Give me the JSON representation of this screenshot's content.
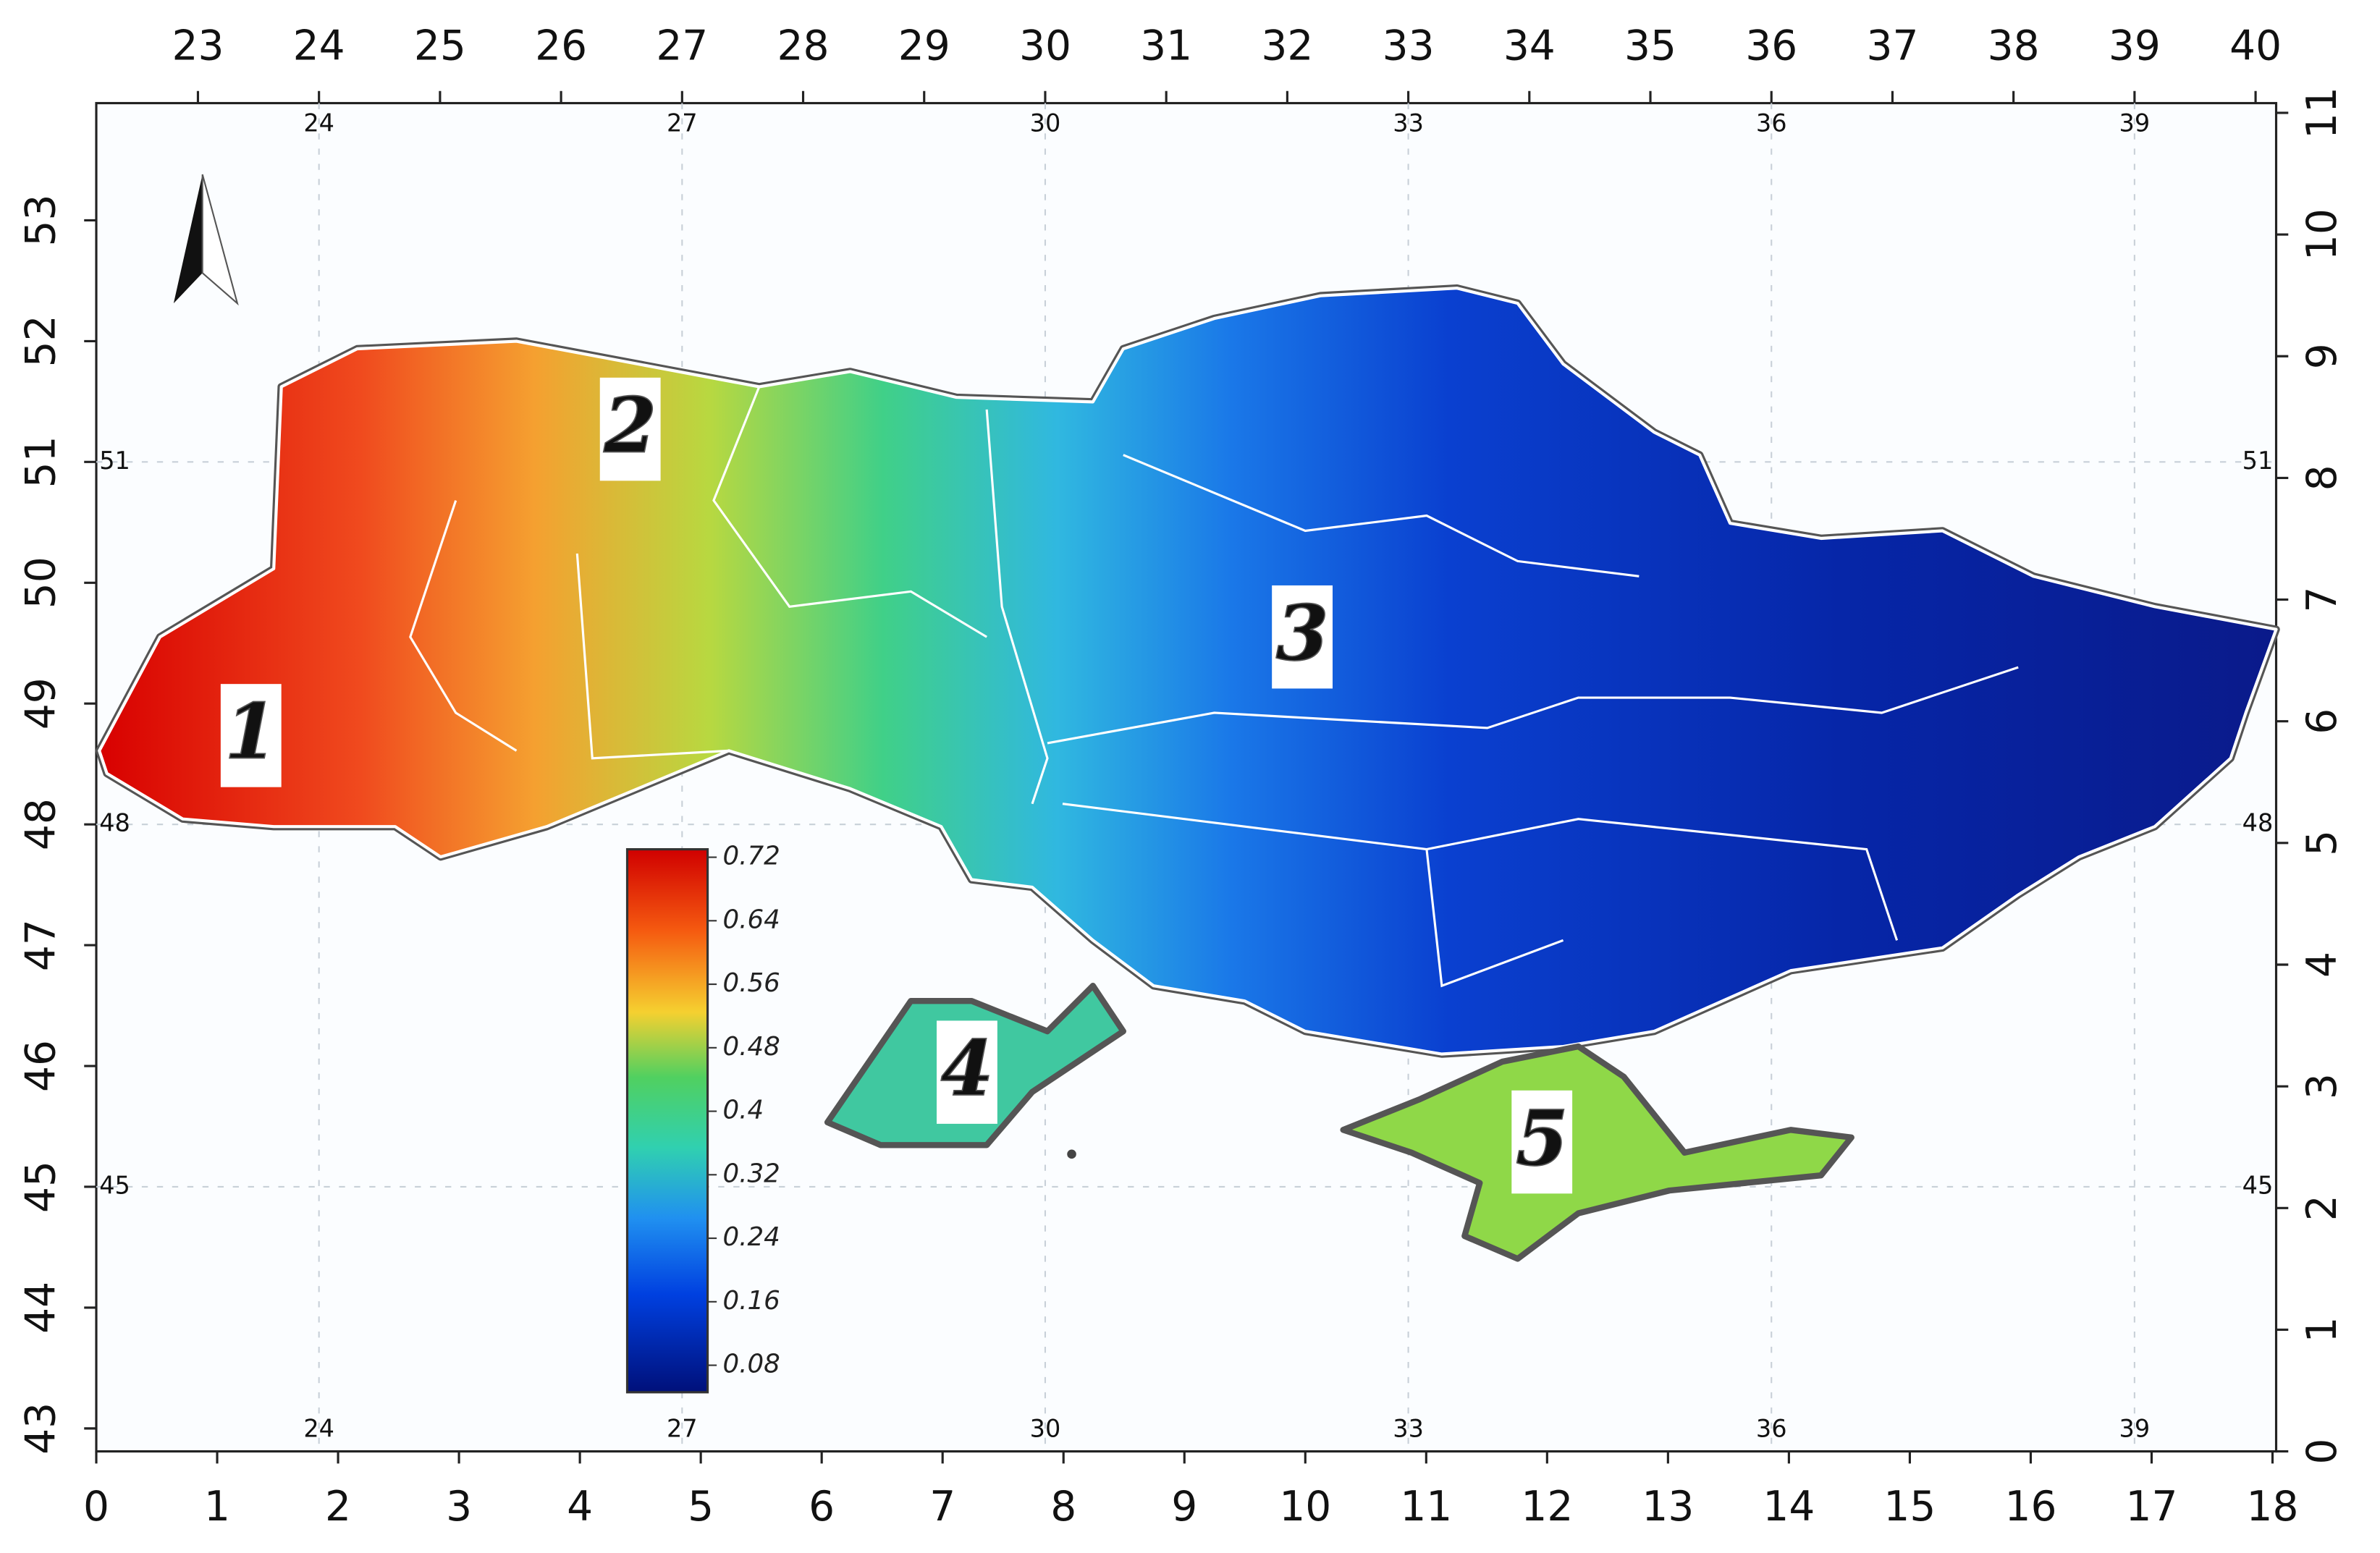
{
  "map": {
    "top_axis": {
      "lim": [
        22.16,
        40.17
      ],
      "ticks": [
        23,
        24,
        25,
        26,
        27,
        28,
        29,
        30,
        31,
        32,
        33,
        34,
        35,
        36,
        37,
        38,
        39,
        40
      ]
    },
    "bottom_axis": {
      "lim": [
        0,
        18.03
      ],
      "ticks": [
        0,
        1,
        2,
        3,
        4,
        5,
        6,
        7,
        8,
        9,
        10,
        11,
        12,
        13,
        14,
        15,
        16,
        17,
        18
      ]
    },
    "left_axis": {
      "lim": [
        42.81,
        53.97
      ],
      "ticks": [
        43,
        44,
        45,
        46,
        47,
        48,
        49,
        50,
        51,
        52,
        53
      ]
    },
    "right_axis": {
      "lim": [
        0,
        11.08
      ],
      "ticks": [
        0,
        1,
        2,
        3,
        4,
        5,
        6,
        7,
        8,
        9,
        10,
        11
      ]
    },
    "inner_lon_labels": [
      24,
      27,
      30,
      33,
      36,
      39
    ],
    "inner_lat_labels": [
      51,
      48,
      45
    ],
    "colorbar": {
      "lim": [
        0.046,
        0.73
      ],
      "ticks": [
        0.72,
        0.64,
        0.56,
        0.48,
        0.4,
        0.32,
        0.24,
        0.16,
        0.08
      ]
    },
    "zone_labels": [
      "1",
      "2",
      "3",
      "4",
      "5"
    ]
  }
}
